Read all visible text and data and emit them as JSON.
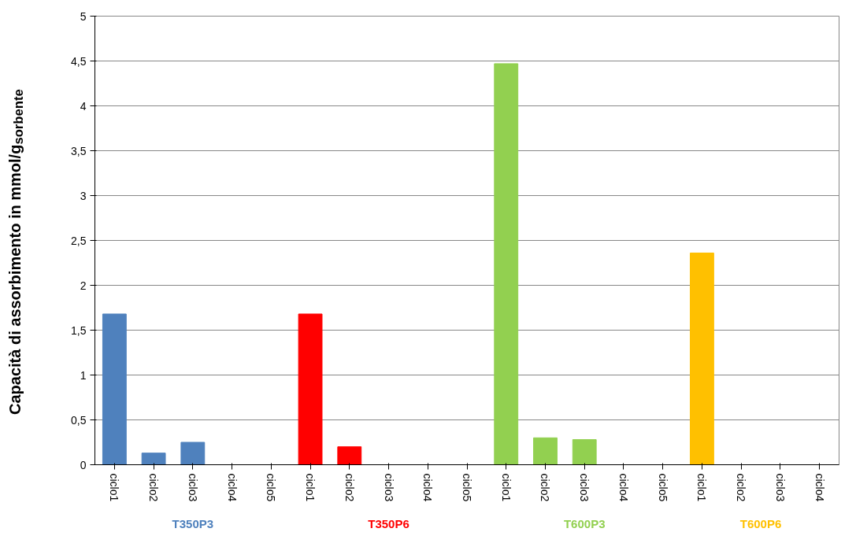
{
  "chart_data": {
    "type": "bar",
    "ylabel": "Capacità di assorbimento in mmol/g$_{sorbente}$",
    "categories": [
      "ciclo1",
      "ciclo2",
      "ciclo3",
      "ciclo4",
      "ciclo5",
      "ciclo1",
      "ciclo2",
      "ciclo3",
      "ciclo4",
      "ciclo5",
      "ciclo1",
      "ciclo2",
      "ciclo3",
      "ciclo4",
      "ciclo5",
      "ciclo1",
      "ciclo2",
      "ciclo3",
      "ciclo4"
    ],
    "series": [
      {
        "name": "T350P3",
        "color": "#4f81bd",
        "values": [
          1.68,
          0.13,
          0.25,
          0,
          0,
          null,
          null,
          null,
          null,
          null,
          null,
          null,
          null,
          null,
          null,
          null,
          null,
          null,
          null
        ]
      },
      {
        "name": "T350P6",
        "color": "#ff0000",
        "values": [
          null,
          null,
          null,
          null,
          null,
          1.68,
          0.2,
          0,
          0,
          0,
          null,
          null,
          null,
          null,
          null,
          null,
          null,
          null,
          null
        ]
      },
      {
        "name": "T600P3",
        "color": "#92d050",
        "values": [
          null,
          null,
          null,
          null,
          null,
          null,
          null,
          null,
          null,
          null,
          4.47,
          0.3,
          0.28,
          0,
          0,
          null,
          null,
          null,
          null
        ]
      },
      {
        "name": "T600P6",
        "color": "#ffc000",
        "values": [
          null,
          null,
          null,
          null,
          null,
          null,
          null,
          null,
          null,
          null,
          null,
          null,
          null,
          null,
          null,
          2.36,
          0,
          0,
          0
        ]
      }
    ],
    "ylim": [
      0,
      5
    ],
    "yticks": [
      0,
      {
        "value": 0.5,
        "label": "0,5"
      },
      1,
      {
        "value": 1.5,
        "label": "1,5"
      },
      2,
      {
        "value": 2.5,
        "label": "2,5"
      },
      3,
      {
        "value": 3.5,
        "label": "3,5"
      },
      4,
      {
        "value": 4.5,
        "label": "4,5"
      },
      5
    ],
    "grid": "y"
  }
}
